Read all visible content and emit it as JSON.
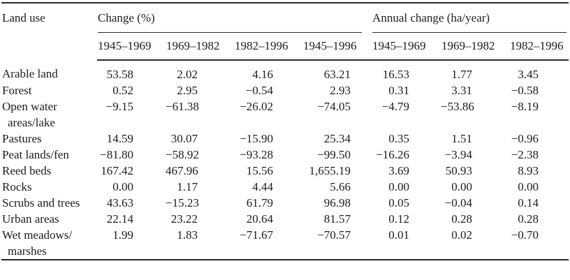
{
  "colors": {
    "text": "#1c1c1c",
    "rule": "#2a2a2a",
    "background": "#ffffff"
  },
  "table": {
    "row_header": "Land use",
    "groups": [
      {
        "label": "Change (%)",
        "periods": [
          "1945–1969",
          "1969–1982",
          "1982–1996",
          "1945–1996"
        ]
      },
      {
        "label": "Annual change (ha/year)",
        "periods": [
          "1945–1969",
          "1969–1982",
          "1982–1996"
        ]
      }
    ],
    "rows": [
      {
        "name_lines": [
          "Arable land"
        ],
        "change_pct": [
          "53.58",
          "2.02",
          "4.16",
          "63.21"
        ],
        "annual_change": [
          "16.53",
          "1.77",
          "3.45"
        ]
      },
      {
        "name_lines": [
          "Forest"
        ],
        "change_pct": [
          "0.52",
          "2.95",
          "−0.54",
          "2.93"
        ],
        "annual_change": [
          "0.31",
          "3.31",
          "−0.58"
        ]
      },
      {
        "name_lines": [
          "Open water",
          "areas/lake"
        ],
        "change_pct": [
          "−9.15",
          "−61.38",
          "−26.02",
          "−74.05"
        ],
        "annual_change": [
          "−4.79",
          "−53.86",
          "−8.19"
        ]
      },
      {
        "name_lines": [
          "Pastures"
        ],
        "change_pct": [
          "14.59",
          "30.07",
          "−15.90",
          "25.34"
        ],
        "annual_change": [
          "0.35",
          "1.51",
          "−0.96"
        ]
      },
      {
        "name_lines": [
          "Peat lands/fen"
        ],
        "change_pct": [
          "−81.80",
          "−58.92",
          "−93.28",
          "−99.50"
        ],
        "annual_change": [
          "−16.26",
          "−3.94",
          "−2.38"
        ]
      },
      {
        "name_lines": [
          "Reed beds"
        ],
        "change_pct": [
          "167.42",
          "467.96",
          "15.56",
          "1,655.19"
        ],
        "annual_change": [
          "3.69",
          "50.93",
          "8.93"
        ]
      },
      {
        "name_lines": [
          "Rocks"
        ],
        "change_pct": [
          "0.00",
          "1.17",
          "4.44",
          "5.66"
        ],
        "annual_change": [
          "0.00",
          "0.00",
          "0.00"
        ]
      },
      {
        "name_lines": [
          "Scrubs and trees"
        ],
        "change_pct": [
          "43.63",
          "−15.23",
          "61.79",
          "96.98"
        ],
        "annual_change": [
          "0.05",
          "−0.04",
          "0.14"
        ]
      },
      {
        "name_lines": [
          "Urban areas"
        ],
        "change_pct": [
          "22.14",
          "23.22",
          "20.64",
          "81.57"
        ],
        "annual_change": [
          "0.12",
          "0.28",
          "0.28"
        ]
      },
      {
        "name_lines": [
          "Wet meadows/",
          "marshes"
        ],
        "change_pct": [
          "1.99",
          "1.83",
          "−71.67",
          "−70.57"
        ],
        "annual_change": [
          "0.01",
          "0.02",
          "−0.70"
        ]
      }
    ]
  }
}
